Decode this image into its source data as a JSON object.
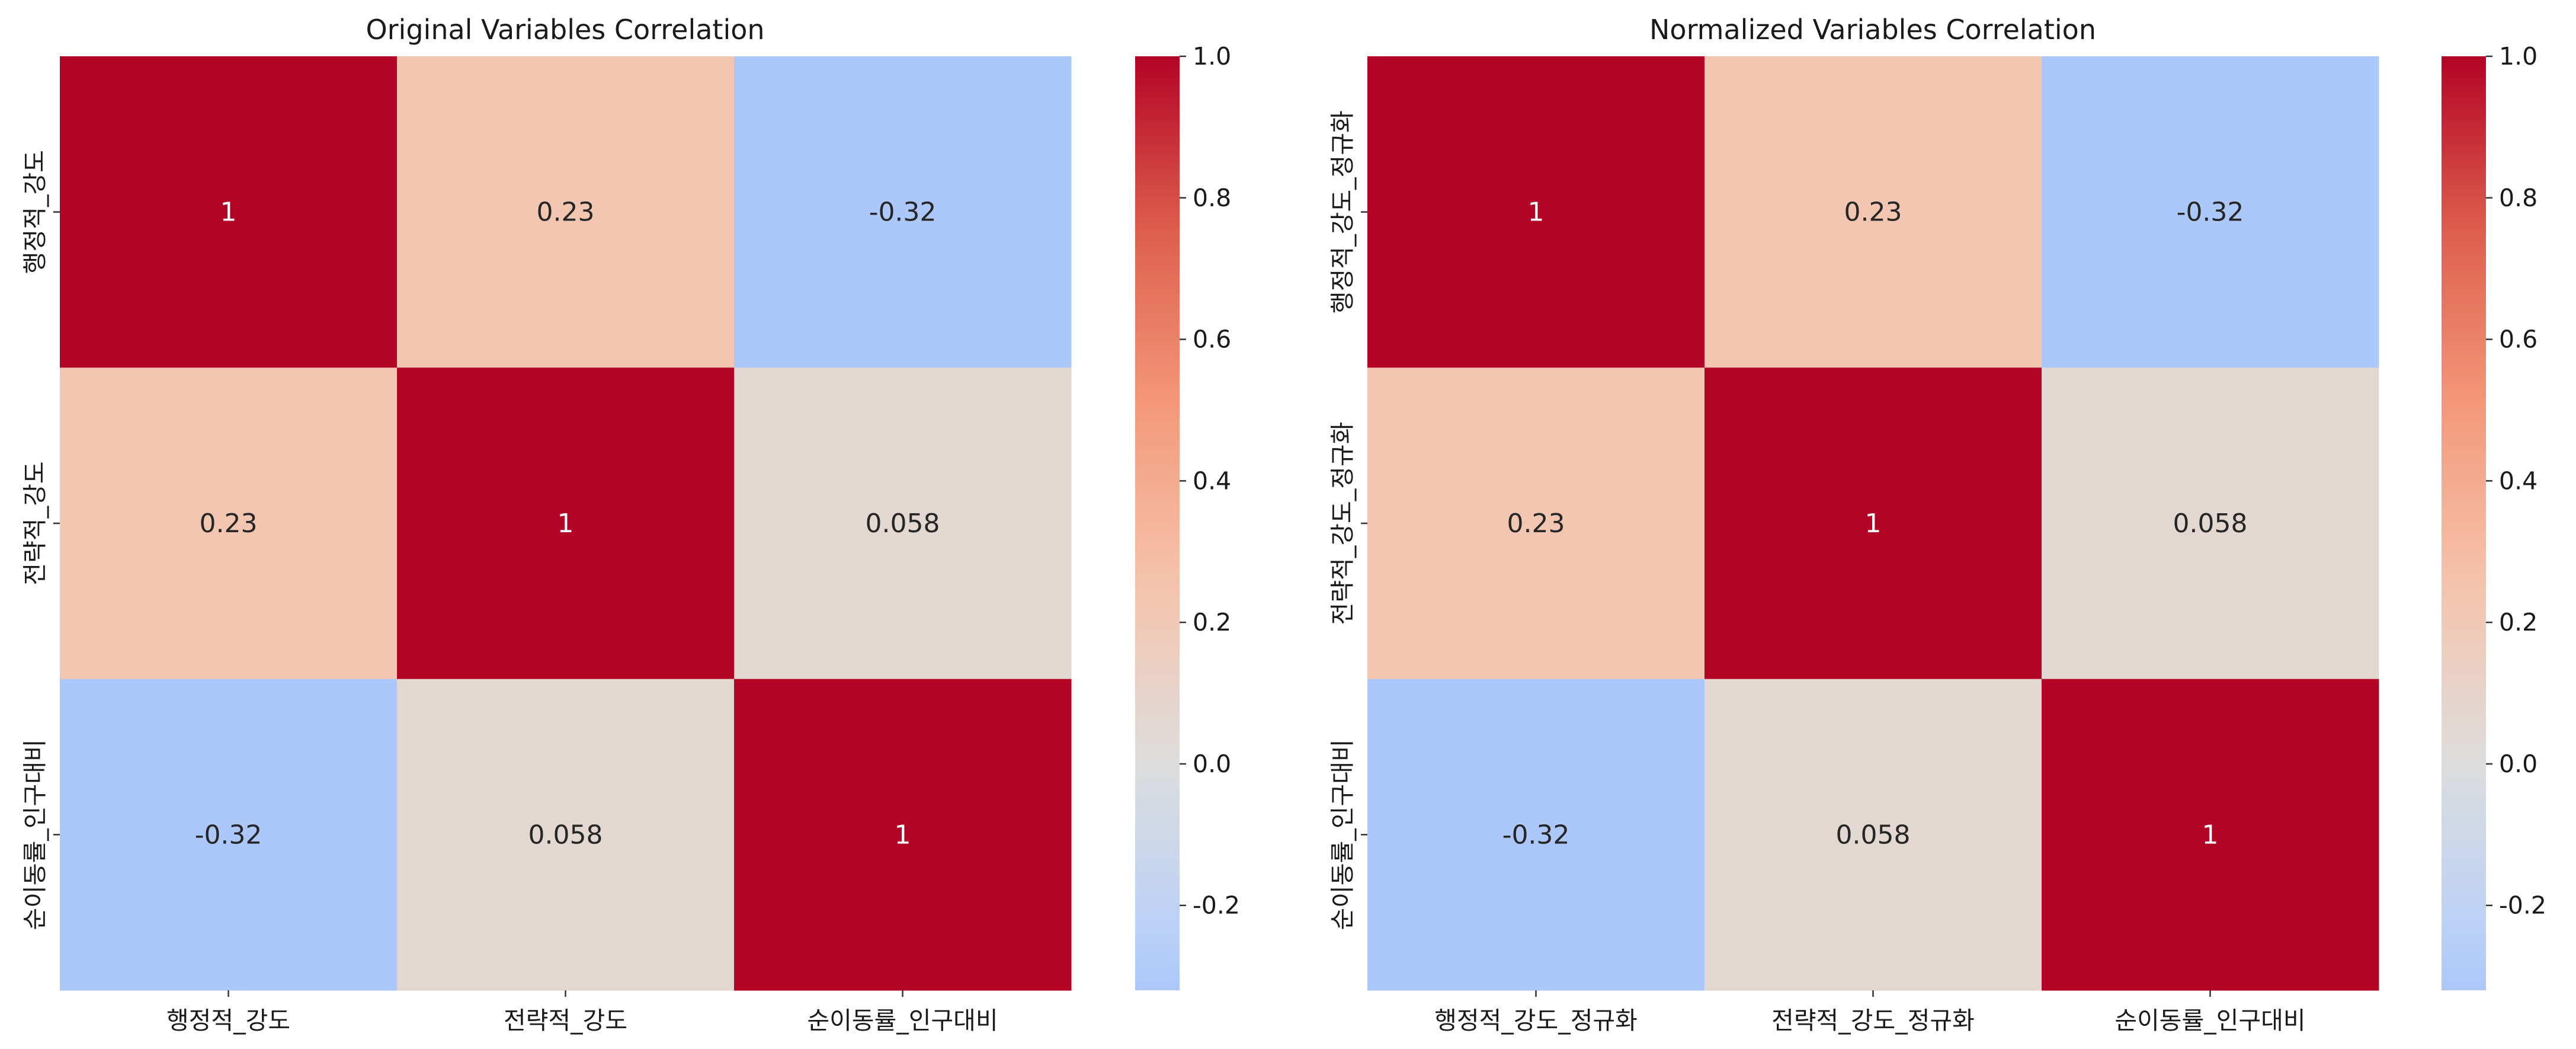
{
  "chart_data": [
    {
      "type": "heatmap",
      "title": "Original Variables Correlation",
      "x_categories": [
        "행정적_강도",
        "전략적_강도",
        "순이동률_인구대비"
      ],
      "y_categories": [
        "행정적_강도",
        "전략적_강도",
        "순이동률_인구대비"
      ],
      "values": [
        [
          1,
          0.23,
          -0.32
        ],
        [
          0.23,
          1,
          0.058
        ],
        [
          -0.32,
          0.058,
          1
        ]
      ],
      "annotations": [
        [
          "1",
          "0.23",
          "-0.32"
        ],
        [
          "0.23",
          "1",
          "0.058"
        ],
        [
          "-0.32",
          "0.058",
          "1"
        ]
      ],
      "colormap": "coolwarm",
      "center": 0,
      "colorbar": {
        "range": [
          -0.32,
          1.0
        ],
        "ticks": [
          -0.2,
          0.0,
          0.2,
          0.4,
          0.6,
          0.8,
          1.0
        ],
        "tick_labels": [
          "-0.2",
          "0.0",
          "0.2",
          "0.4",
          "0.6",
          "0.8",
          "1.0"
        ]
      },
      "grid": false,
      "legend": "colorbar-right"
    },
    {
      "type": "heatmap",
      "title": "Normalized Variables Correlation",
      "x_categories": [
        "행정적_강도_정규화",
        "전략적_강도_정규화",
        "순이동률_인구대비"
      ],
      "y_categories": [
        "행정적_강도_정규화",
        "전략적_강도_정규화",
        "순이동률_인구대비"
      ],
      "values": [
        [
          1,
          0.23,
          -0.32
        ],
        [
          0.23,
          1,
          0.058
        ],
        [
          -0.32,
          0.058,
          1
        ]
      ],
      "annotations": [
        [
          "1",
          "0.23",
          "-0.32"
        ],
        [
          "0.23",
          "1",
          "0.058"
        ],
        [
          "-0.32",
          "0.058",
          "1"
        ]
      ],
      "colormap": "coolwarm",
      "center": 0,
      "colorbar": {
        "range": [
          -0.32,
          1.0
        ],
        "ticks": [
          -0.2,
          0.0,
          0.2,
          0.4,
          0.6,
          0.8,
          1.0
        ],
        "tick_labels": [
          "-0.2",
          "0.0",
          "0.2",
          "0.4",
          "0.6",
          "0.8",
          "1.0"
        ]
      },
      "grid": false,
      "legend": "colorbar-right"
    }
  ]
}
